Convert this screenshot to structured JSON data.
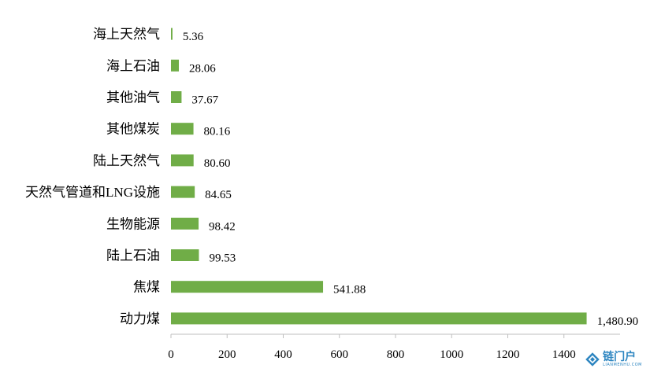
{
  "chart_data": {
    "type": "bar",
    "orientation": "horizontal",
    "categories": [
      "海上天然气",
      "海上石油",
      "其他油气",
      "其他煤炭",
      "陆上天然气",
      "天然气管道和LNG设施",
      "生物能源",
      "陆上石油",
      "焦煤",
      "动力煤"
    ],
    "values": [
      5.36,
      28.06,
      37.67,
      80.16,
      80.6,
      84.65,
      98.42,
      99.53,
      541.88,
      1480.9
    ],
    "value_labels": [
      "5.36",
      "28.06",
      "37.67",
      "80.16",
      "80.60",
      "84.65",
      "98.42",
      "99.53",
      "541.88",
      "1,480.90"
    ],
    "xlim": [
      0,
      1600
    ],
    "xticks": [
      "0",
      "200",
      "400",
      "600",
      "800",
      "1000",
      "1200",
      "1400"
    ],
    "xtick_values": [
      0,
      200,
      400,
      600,
      800,
      1000,
      1200,
      1400
    ],
    "bar_color": "#70ad47",
    "grid": false,
    "legend": "none"
  },
  "watermark": {
    "text": "链门户",
    "subtext": "LIANMENHU.COM",
    "color": "#2e86c1"
  }
}
